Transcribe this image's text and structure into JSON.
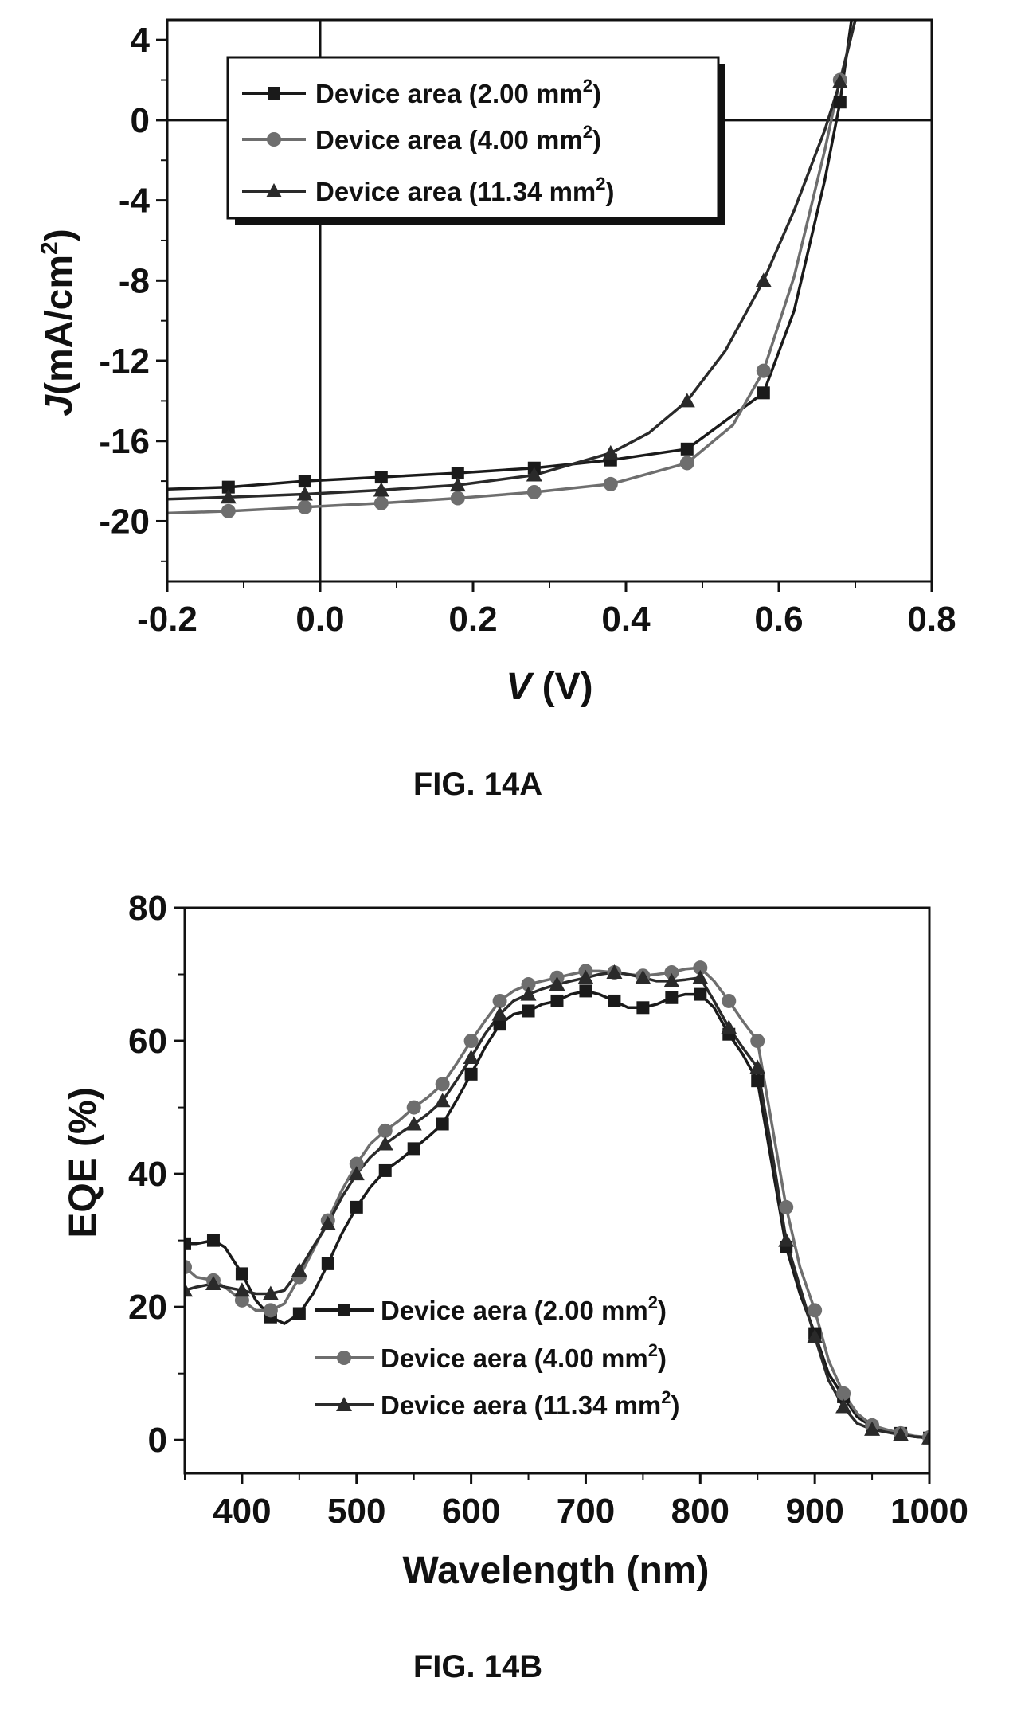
{
  "figures": [
    {
      "caption": "FIG. 14A",
      "ylabel_symbol": "J",
      "ylabel_unit": "(mA/cm",
      "ylabel_sup": "2",
      "ylabel_close": ")",
      "xlabel_symbol": "V",
      "xlabel_unit": " (V)"
    },
    {
      "caption": "FIG. 14B",
      "ylabel": "EQE (%)",
      "xlabel": "Wavelength (nm)"
    }
  ],
  "chart_data": [
    {
      "type": "line",
      "xlabel": "V (V)",
      "ylabel": "J (mA/cm2)",
      "xlim": [
        -0.2,
        0.8
      ],
      "ylim": [
        -23,
        5
      ],
      "xticks": [
        "-0.2",
        "0.0",
        "0.2",
        "0.4",
        "0.6",
        "0.8"
      ],
      "xtick_values": [
        -0.2,
        0.0,
        0.2,
        0.4,
        0.6,
        0.8
      ],
      "yticks": [
        "4",
        "0",
        "-4",
        "-8",
        "-12",
        "-16",
        "-20"
      ],
      "ytick_values": [
        4,
        0,
        -4,
        -8,
        -12,
        -16,
        -20
      ],
      "zero_lines": true,
      "grid": false,
      "legend_position": "top-left",
      "series": [
        {
          "name": "Device area (2.00 mm",
          "name_sup": "2",
          "name_close": ")",
          "marker": "square",
          "color": "#1a1a1a",
          "x": [
            -0.2,
            -0.12,
            -0.02,
            0.08,
            0.18,
            0.28,
            0.38,
            0.48,
            0.58,
            0.62,
            0.66,
            0.68,
            0.695
          ],
          "y": [
            -18.4,
            -18.3,
            -18.0,
            -17.8,
            -17.6,
            -17.35,
            -16.95,
            -16.4,
            -13.6,
            -9.5,
            -3.0,
            0.9,
            5.0
          ],
          "marker_x": [
            -0.12,
            -0.02,
            0.08,
            0.18,
            0.28,
            0.38,
            0.48,
            0.58,
            0.68
          ],
          "marker_y": [
            -18.3,
            -18.0,
            -17.8,
            -17.6,
            -17.35,
            -16.95,
            -16.4,
            -13.6,
            0.9
          ]
        },
        {
          "name": "Device area (4.00 mm",
          "name_sup": "2",
          "name_close": ")",
          "marker": "circle",
          "color": "#6e6e6e",
          "x": [
            -0.2,
            -0.12,
            -0.02,
            0.08,
            0.18,
            0.28,
            0.38,
            0.48,
            0.54,
            0.58,
            0.62,
            0.66,
            0.68,
            0.7
          ],
          "y": [
            -19.6,
            -19.5,
            -19.3,
            -19.1,
            -18.85,
            -18.55,
            -18.15,
            -17.1,
            -15.2,
            -12.5,
            -7.8,
            -1.5,
            2.0,
            5.0
          ],
          "marker_x": [
            -0.12,
            -0.02,
            0.08,
            0.18,
            0.28,
            0.38,
            0.48,
            0.58,
            0.68
          ],
          "marker_y": [
            -19.5,
            -19.3,
            -19.1,
            -18.85,
            -18.55,
            -18.15,
            -17.1,
            -12.5,
            2.0
          ]
        },
        {
          "name": "Device area (11.34 mm",
          "name_sup": "2",
          "name_close": ")",
          "marker": "triangle",
          "color": "#2a2a2a",
          "x": [
            -0.2,
            -0.12,
            -0.02,
            0.08,
            0.18,
            0.28,
            0.38,
            0.43,
            0.48,
            0.53,
            0.58,
            0.62,
            0.66,
            0.68,
            0.7
          ],
          "y": [
            -18.9,
            -18.8,
            -18.65,
            -18.45,
            -18.2,
            -17.7,
            -16.6,
            -15.6,
            -14.0,
            -11.5,
            -8.0,
            -4.5,
            -0.5,
            1.9,
            5.0
          ],
          "marker_x": [
            -0.12,
            -0.02,
            0.08,
            0.18,
            0.28,
            0.38,
            0.48,
            0.58,
            0.68
          ],
          "marker_y": [
            -18.8,
            -18.65,
            -18.45,
            -18.2,
            -17.7,
            -16.6,
            -14.0,
            -8.0,
            1.9
          ]
        }
      ]
    },
    {
      "type": "line",
      "xlabel": "Wavelength (nm)",
      "ylabel": "EQE (%)",
      "xlim": [
        350,
        1000
      ],
      "ylim": [
        -5,
        80
      ],
      "xticks": [
        "400",
        "500",
        "600",
        "700",
        "800",
        "900",
        "1000"
      ],
      "xtick_values": [
        400,
        500,
        600,
        700,
        800,
        900,
        1000
      ],
      "yticks": [
        "80",
        "60",
        "40",
        "20",
        "0"
      ],
      "ytick_values": [
        80,
        60,
        40,
        20,
        0
      ],
      "grid": false,
      "legend_position": "bottom-center",
      "series": [
        {
          "name": "Device aera (2.00 mm",
          "name_sup": "2",
          "name_close": ")",
          "marker": "square",
          "color": "#1a1a1a",
          "x": [
            350,
            360,
            375,
            385,
            400,
            412,
            425,
            437,
            450,
            462,
            475,
            487,
            500,
            512,
            525,
            537,
            550,
            562,
            575,
            587,
            600,
            612,
            625,
            637,
            650,
            662,
            675,
            687,
            700,
            712,
            725,
            737,
            750,
            762,
            775,
            787,
            800,
            812,
            825,
            837,
            850,
            862,
            875,
            887,
            900,
            912,
            925,
            937,
            950,
            962,
            975,
            987,
            1000
          ],
          "y": [
            29.5,
            29.5,
            30.0,
            29.0,
            25.0,
            21.0,
            18.5,
            17.5,
            19.0,
            22.0,
            26.5,
            31.0,
            35.0,
            38.0,
            40.5,
            42.0,
            43.8,
            45.5,
            47.5,
            51.0,
            55.0,
            59.0,
            62.5,
            64.0,
            64.5,
            65.5,
            66.0,
            67.0,
            67.5,
            67.0,
            66.0,
            65.0,
            65.0,
            65.5,
            66.5,
            67.0,
            67.0,
            65.0,
            61.0,
            58.0,
            54.0,
            42.0,
            29.0,
            22.0,
            16.0,
            10.0,
            6.5,
            3.5,
            2.0,
            1.5,
            1.0,
            0.5,
            0.3
          ],
          "marker_x": [
            350,
            375,
            400,
            425,
            450,
            475,
            500,
            525,
            550,
            575,
            600,
            625,
            650,
            675,
            700,
            725,
            750,
            775,
            800,
            825,
            850,
            875,
            900,
            925,
            950,
            975,
            1000
          ],
          "marker_y": [
            29.5,
            30.0,
            25.0,
            18.5,
            19.0,
            26.5,
            35.0,
            40.5,
            43.8,
            47.5,
            55.0,
            62.5,
            64.5,
            66.0,
            67.5,
            66.0,
            65.0,
            66.5,
            67.0,
            61.0,
            54.0,
            29.0,
            16.0,
            6.5,
            2.0,
            1.0,
            0.3
          ]
        },
        {
          "name": "Device aera (4.00 mm",
          "name_sup": "2",
          "name_close": ")",
          "marker": "circle",
          "color": "#6e6e6e",
          "x": [
            350,
            360,
            375,
            385,
            400,
            412,
            425,
            437,
            450,
            462,
            475,
            487,
            500,
            512,
            525,
            537,
            550,
            562,
            575,
            587,
            600,
            612,
            625,
            637,
            650,
            662,
            675,
            687,
            700,
            712,
            725,
            737,
            750,
            762,
            775,
            787,
            800,
            812,
            825,
            837,
            850,
            862,
            875,
            887,
            900,
            912,
            925,
            937,
            950,
            962,
            975,
            987,
            1000
          ],
          "y": [
            26.0,
            24.5,
            24.0,
            23.0,
            21.0,
            19.5,
            19.5,
            20.5,
            24.5,
            28.5,
            33.0,
            37.5,
            41.5,
            44.5,
            46.5,
            48.0,
            50.0,
            51.5,
            53.5,
            56.5,
            60.0,
            63.0,
            66.0,
            67.5,
            68.5,
            69.0,
            69.5,
            70.0,
            70.5,
            70.5,
            70.3,
            70.0,
            69.8,
            70.0,
            70.3,
            70.8,
            71.0,
            69.0,
            66.0,
            63.0,
            60.0,
            48.0,
            35.0,
            26.0,
            19.5,
            12.0,
            7.0,
            4.0,
            2.2,
            1.6,
            1.0,
            0.6,
            0.4
          ],
          "marker_x": [
            350,
            375,
            400,
            425,
            450,
            475,
            500,
            525,
            550,
            575,
            600,
            625,
            650,
            675,
            700,
            725,
            750,
            775,
            800,
            825,
            850,
            875,
            900,
            925,
            950,
            975,
            1000
          ],
          "marker_y": [
            26.0,
            24.0,
            21.0,
            19.5,
            24.5,
            33.0,
            41.5,
            46.5,
            50.0,
            53.5,
            60.0,
            66.0,
            68.5,
            69.5,
            70.5,
            70.3,
            69.8,
            70.3,
            71.0,
            66.0,
            60.0,
            35.0,
            19.5,
            7.0,
            2.2,
            1.0,
            0.4
          ]
        },
        {
          "name": "Device aera (11.34 mm",
          "name_sup": "2",
          "name_close": ")",
          "marker": "triangle",
          "color": "#2a2a2a",
          "x": [
            350,
            360,
            375,
            385,
            400,
            412,
            425,
            437,
            450,
            462,
            475,
            487,
            500,
            512,
            525,
            537,
            550,
            562,
            575,
            587,
            600,
            612,
            625,
            637,
            650,
            662,
            675,
            687,
            700,
            712,
            725,
            737,
            750,
            762,
            775,
            787,
            800,
            812,
            825,
            837,
            850,
            862,
            875,
            887,
            900,
            912,
            925,
            937,
            950,
            962,
            975,
            987,
            1000
          ],
          "y": [
            22.5,
            23.0,
            23.5,
            23.0,
            22.5,
            22.0,
            22.0,
            22.5,
            25.5,
            29.0,
            32.5,
            36.5,
            40.0,
            42.5,
            44.5,
            46.0,
            47.5,
            49.0,
            51.0,
            54.0,
            57.5,
            61.0,
            64.0,
            66.0,
            67.0,
            67.8,
            68.5,
            69.0,
            69.5,
            70.0,
            70.3,
            70.0,
            69.5,
            69.0,
            69.0,
            69.2,
            69.5,
            66.0,
            62.0,
            59.0,
            56.0,
            44.0,
            30.0,
            23.0,
            15.5,
            9.0,
            5.0,
            2.5,
            1.6,
            1.2,
            0.8,
            0.5,
            0.3
          ],
          "marker_x": [
            350,
            375,
            400,
            425,
            450,
            475,
            500,
            525,
            550,
            575,
            600,
            625,
            650,
            675,
            700,
            725,
            750,
            775,
            800,
            825,
            850,
            875,
            900,
            925,
            950,
            975,
            1000
          ],
          "marker_y": [
            22.5,
            23.5,
            22.5,
            22.0,
            25.5,
            32.5,
            40.0,
            44.5,
            47.5,
            51.0,
            57.5,
            64.0,
            67.0,
            68.5,
            69.5,
            70.3,
            69.5,
            69.0,
            69.5,
            62.0,
            56.0,
            30.0,
            15.5,
            5.0,
            1.6,
            0.8,
            0.3
          ]
        }
      ]
    }
  ]
}
